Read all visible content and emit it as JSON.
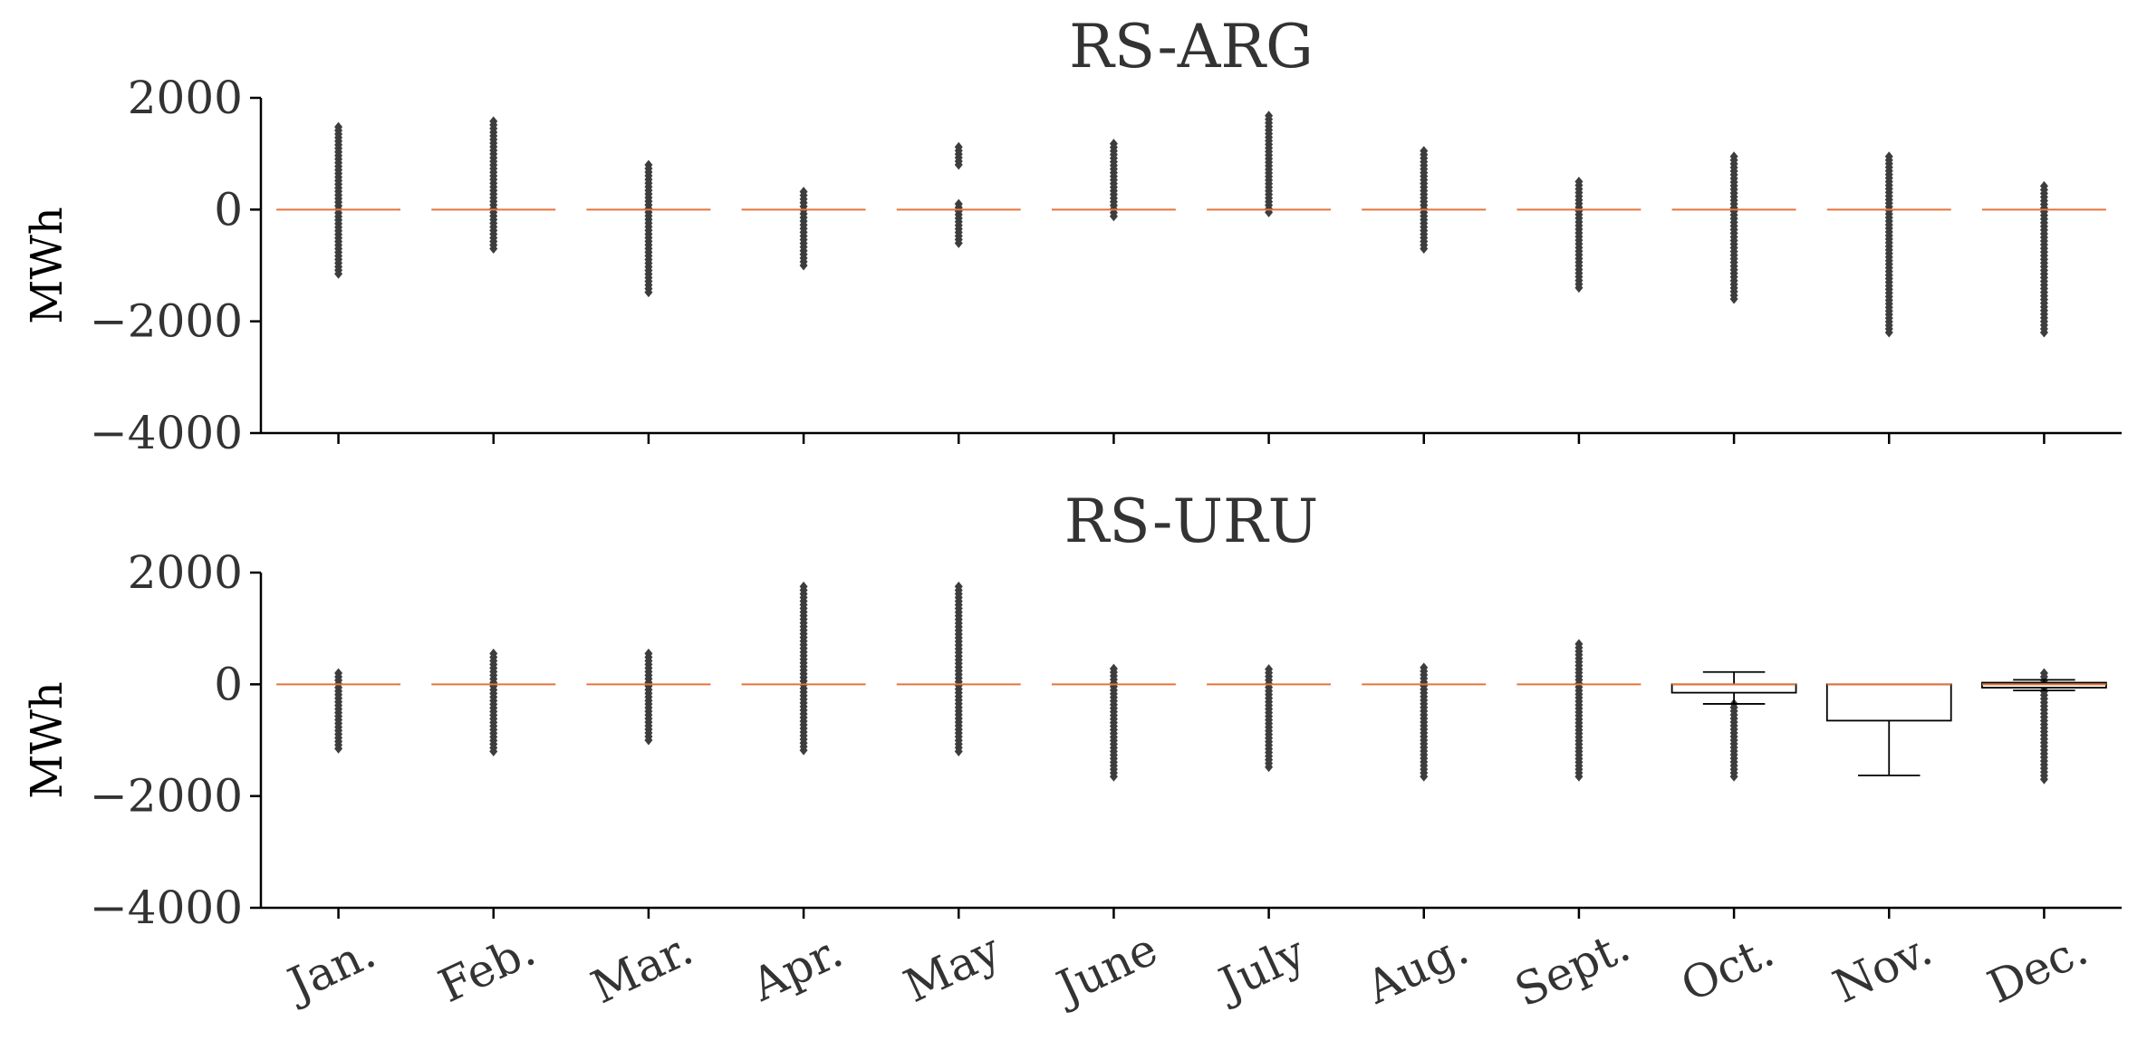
{
  "chart_data": [
    {
      "type": "box",
      "title": "RS-ARG",
      "ylabel": "MWh",
      "ylim": [
        -4000,
        2000
      ],
      "yticks": [
        2000,
        0,
        -2000,
        -4000
      ],
      "categories": [
        "Jan.",
        "Feb.",
        "Mar.",
        "Apr.",
        "May",
        "June",
        "July",
        "Aug.",
        "Sept.",
        "Oct.",
        "Nov.",
        "Dec."
      ],
      "show_xtick_labels": false,
      "boxes": [
        {
          "q1": 0,
          "median": 0,
          "q3": 0,
          "whisker_low": 0,
          "whisker_high": 0,
          "outlier_min": -1150,
          "outlier_max": 1480
        },
        {
          "q1": 0,
          "median": 0,
          "q3": 0,
          "whisker_low": 0,
          "whisker_high": 0,
          "outlier_min": -700,
          "outlier_max": 1580
        },
        {
          "q1": 0,
          "median": 0,
          "q3": 0,
          "whisker_low": 0,
          "whisker_high": 0,
          "outlier_min": -1480,
          "outlier_max": 800
        },
        {
          "q1": 0,
          "median": 0,
          "q3": 0,
          "whisker_low": 0,
          "whisker_high": 0,
          "outlier_min": -1000,
          "outlier_max": 320
        },
        {
          "q1": 0,
          "median": 0,
          "q3": 0,
          "whisker_low": 0,
          "whisker_high": 0,
          "outlier_min": -600,
          "outlier_max": 1120,
          "gap": [
            150,
            750
          ]
        },
        {
          "q1": 0,
          "median": 0,
          "q3": 0,
          "whisker_low": 0,
          "whisker_high": 0,
          "outlier_min": -120,
          "outlier_max": 1180
        },
        {
          "q1": 0,
          "median": 0,
          "q3": 0,
          "whisker_low": 0,
          "whisker_high": 0,
          "outlier_min": -50,
          "outlier_max": 1680
        },
        {
          "q1": 0,
          "median": 0,
          "q3": 0,
          "whisker_low": 0,
          "whisker_high": 0,
          "outlier_min": -700,
          "outlier_max": 1050
        },
        {
          "q1": 0,
          "median": 0,
          "q3": 0,
          "whisker_low": 0,
          "whisker_high": 0,
          "outlier_min": -1400,
          "outlier_max": 500
        },
        {
          "q1": 0,
          "median": 0,
          "q3": 0,
          "whisker_low": 0,
          "whisker_high": 0,
          "outlier_min": -1600,
          "outlier_max": 950
        },
        {
          "q1": 0,
          "median": 0,
          "q3": 0,
          "whisker_low": 0,
          "whisker_high": 0,
          "outlier_min": -2200,
          "outlier_max": 950
        },
        {
          "q1": 0,
          "median": 0,
          "q3": 0,
          "whisker_low": 0,
          "whisker_high": 0,
          "outlier_min": -2200,
          "outlier_max": 420
        }
      ]
    },
    {
      "type": "box",
      "title": "RS-URU",
      "ylabel": "MWh",
      "ylim": [
        -4000,
        2000
      ],
      "yticks": [
        2000,
        0,
        -2000,
        -4000
      ],
      "categories": [
        "Jan.",
        "Feb.",
        "Mar.",
        "Apr.",
        "May",
        "June",
        "July",
        "Aug.",
        "Sept.",
        "Oct.",
        "Nov.",
        "Dec."
      ],
      "show_xtick_labels": true,
      "boxes": [
        {
          "q1": 0,
          "median": 0,
          "q3": 0,
          "whisker_low": 0,
          "whisker_high": 0,
          "outlier_min": -1150,
          "outlier_max": 200
        },
        {
          "q1": 0,
          "median": 0,
          "q3": 0,
          "whisker_low": 0,
          "whisker_high": 0,
          "outlier_min": -1200,
          "outlier_max": 550
        },
        {
          "q1": 0,
          "median": 0,
          "q3": 0,
          "whisker_low": 0,
          "whisker_high": 0,
          "outlier_min": -1000,
          "outlier_max": 550
        },
        {
          "q1": 0,
          "median": 0,
          "q3": 0,
          "whisker_low": 0,
          "whisker_high": 0,
          "outlier_min": -1180,
          "outlier_max": 1750
        },
        {
          "q1": 0,
          "median": 0,
          "q3": 0,
          "whisker_low": 0,
          "whisker_high": 0,
          "outlier_min": -1200,
          "outlier_max": 1750
        },
        {
          "q1": 0,
          "median": 0,
          "q3": 0,
          "whisker_low": 0,
          "whisker_high": 0,
          "outlier_min": -1650,
          "outlier_max": 280
        },
        {
          "q1": 0,
          "median": 0,
          "q3": 0,
          "whisker_low": 0,
          "whisker_high": 0,
          "outlier_min": -1480,
          "outlier_max": 270
        },
        {
          "q1": 0,
          "median": 0,
          "q3": 0,
          "whisker_low": 0,
          "whisker_high": 0,
          "outlier_min": -1650,
          "outlier_max": 300
        },
        {
          "q1": 0,
          "median": 0,
          "q3": 0,
          "whisker_low": 0,
          "whisker_high": 0,
          "outlier_min": -1650,
          "outlier_max": 720
        },
        {
          "q1": -150,
          "median": 0,
          "q3": 0,
          "whisker_low": -350,
          "whisker_high": 220,
          "outlier_min": -1650,
          "outlier_max": -350
        },
        {
          "q1": -650,
          "median": 0,
          "q3": 0,
          "whisker_low": -1630,
          "whisker_high": 0
        },
        {
          "q1": -60,
          "median": 0,
          "q3": 30,
          "whisker_low": -110,
          "whisker_high": 80,
          "outlier_min": -1700,
          "outlier_max": 200
        }
      ]
    }
  ]
}
